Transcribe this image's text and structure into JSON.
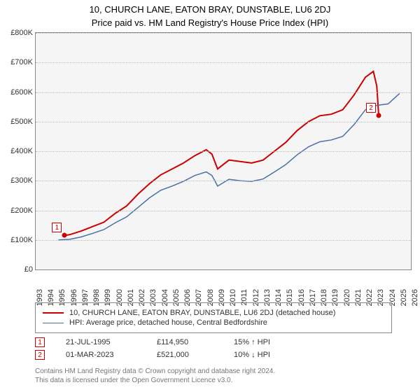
{
  "titles": {
    "line1": "10, CHURCH LANE, EATON BRAY, DUNSTABLE, LU6 2DJ",
    "line2": "Price paid vs. HM Land Registry's House Price Index (HPI)"
  },
  "chart": {
    "type": "line",
    "background_color": "#f4f5f4",
    "grid_color": "#bbbbbb",
    "axis_color": "#888888",
    "ylim": [
      0,
      800000
    ],
    "ytick_step": 100000,
    "yticks": [
      "£0",
      "£100K",
      "£200K",
      "£300K",
      "£400K",
      "£500K",
      "£600K",
      "£700K",
      "£800K"
    ],
    "x_years": [
      1993,
      1994,
      1995,
      1996,
      1997,
      1998,
      1999,
      2000,
      2001,
      2002,
      2003,
      2004,
      2005,
      2006,
      2007,
      2008,
      2009,
      2010,
      2011,
      2012,
      2013,
      2014,
      2015,
      2016,
      2017,
      2018,
      2019,
      2020,
      2021,
      2022,
      2023,
      2024,
      2025,
      2026
    ],
    "series": [
      {
        "name": "property",
        "label": "10, CHURCH LANE, EATON BRAY, DUNSTABLE, LU6 2DJ (detached house)",
        "color": "#cc0000",
        "line_width": 2,
        "data": [
          [
            1995.55,
            114950
          ],
          [
            1996,
            118000
          ],
          [
            1997,
            130000
          ],
          [
            1998,
            145000
          ],
          [
            1999,
            160000
          ],
          [
            2000,
            190000
          ],
          [
            2001,
            215000
          ],
          [
            2002,
            255000
          ],
          [
            2003,
            290000
          ],
          [
            2004,
            320000
          ],
          [
            2005,
            340000
          ],
          [
            2006,
            360000
          ],
          [
            2007,
            385000
          ],
          [
            2008,
            405000
          ],
          [
            2008.5,
            390000
          ],
          [
            2009,
            340000
          ],
          [
            2010,
            370000
          ],
          [
            2011,
            365000
          ],
          [
            2012,
            360000
          ],
          [
            2013,
            370000
          ],
          [
            2014,
            400000
          ],
          [
            2015,
            430000
          ],
          [
            2016,
            470000
          ],
          [
            2017,
            500000
          ],
          [
            2018,
            520000
          ],
          [
            2019,
            525000
          ],
          [
            2020,
            540000
          ],
          [
            2021,
            590000
          ],
          [
            2022,
            650000
          ],
          [
            2022.7,
            670000
          ],
          [
            2023,
            620000
          ],
          [
            2023.17,
            521000
          ]
        ]
      },
      {
        "name": "hpi",
        "label": "HPI: Average price, detached house, Central Bedfordshire",
        "color": "#4a6fa5",
        "line_width": 1.5,
        "data": [
          [
            1995,
            100000
          ],
          [
            1996,
            102000
          ],
          [
            1997,
            110000
          ],
          [
            1998,
            122000
          ],
          [
            1999,
            135000
          ],
          [
            2000,
            158000
          ],
          [
            2001,
            178000
          ],
          [
            2002,
            210000
          ],
          [
            2003,
            242000
          ],
          [
            2004,
            268000
          ],
          [
            2005,
            282000
          ],
          [
            2006,
            298000
          ],
          [
            2007,
            318000
          ],
          [
            2008,
            330000
          ],
          [
            2008.5,
            318000
          ],
          [
            2009,
            282000
          ],
          [
            2010,
            305000
          ],
          [
            2011,
            300000
          ],
          [
            2012,
            298000
          ],
          [
            2013,
            306000
          ],
          [
            2014,
            330000
          ],
          [
            2015,
            355000
          ],
          [
            2016,
            388000
          ],
          [
            2017,
            415000
          ],
          [
            2018,
            432000
          ],
          [
            2019,
            438000
          ],
          [
            2020,
            450000
          ],
          [
            2021,
            490000
          ],
          [
            2022,
            540000
          ],
          [
            2023,
            555000
          ],
          [
            2024,
            560000
          ],
          [
            2025,
            595000
          ]
        ]
      }
    ],
    "markers": [
      {
        "id": "1",
        "year": 1995.55,
        "value": 114950,
        "color": "#cc0000"
      },
      {
        "id": "2",
        "year": 2023.17,
        "value": 521000,
        "color": "#cc0000"
      }
    ]
  },
  "legend": {
    "item1": "10, CHURCH LANE, EATON BRAY, DUNSTABLE, LU6 2DJ (detached house)",
    "item2": "HPI: Average price, detached house, Central Bedfordshire"
  },
  "sales": [
    {
      "id": "1",
      "date": "21-JUL-1995",
      "price": "£114,950",
      "hpi": "15% ↑ HPI"
    },
    {
      "id": "2",
      "date": "01-MAR-2023",
      "price": "£521,000",
      "hpi": "10% ↓ HPI"
    }
  ],
  "footer": {
    "line1": "Contains HM Land Registry data © Crown copyright and database right 2024.",
    "line2": "This data is licensed under the Open Government Licence v3.0."
  }
}
